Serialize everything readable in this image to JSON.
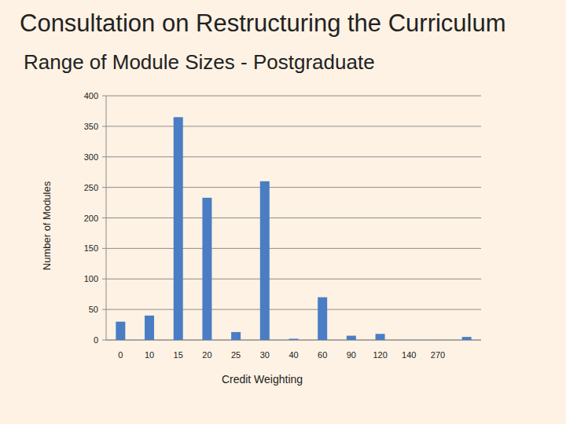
{
  "chart_data": {
    "type": "bar",
    "title": "Consultation on Restructuring the Curriculum",
    "subtitle": "Range of Module Sizes - Postgraduate",
    "x_label": "Credit Weighting",
    "y_label": "Number of Modules",
    "categories": [
      "0",
      "10",
      "15",
      "20",
      "25",
      "30",
      "40",
      "60",
      "90",
      "120",
      "140",
      "270",
      null
    ],
    "values": [
      30,
      40,
      365,
      233,
      13,
      260,
      2,
      70,
      7,
      10,
      0,
      0,
      5
    ],
    "color": "#4a7dc3",
    "ylim": [
      0,
      400
    ],
    "yticks": [
      0,
      50,
      100,
      150,
      200,
      250,
      300,
      350,
      400
    ],
    "grid": true
  }
}
